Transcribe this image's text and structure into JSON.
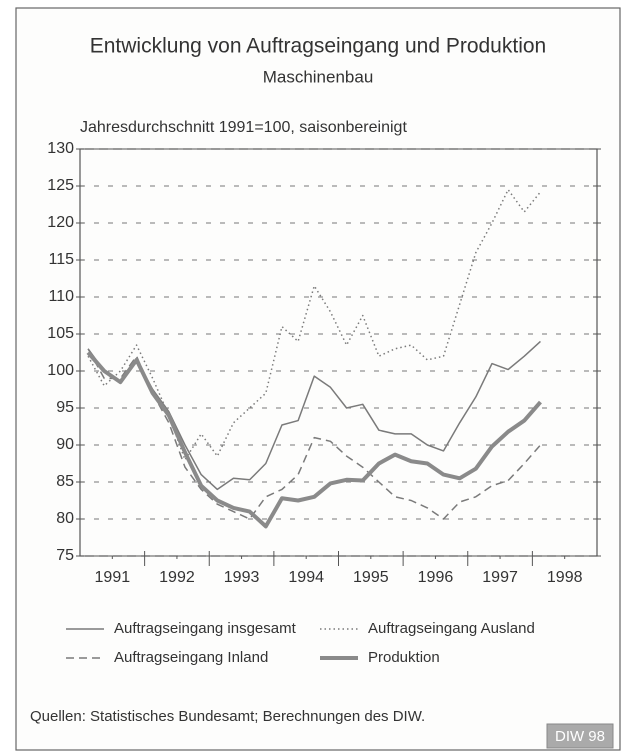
{
  "chart_data": {
    "type": "line",
    "title": "Entwicklung von Auftragseingang und Produktion",
    "subtitle": "Maschinenbau",
    "ylabel": "Jahresdurchschnitt 1991=100, saisonbereinigt",
    "source": "Quellen: Statistisches Bundesamt; Berechnungen des DIW.",
    "badge": "DIW 98",
    "x": [
      1991.125,
      1991.375,
      1991.625,
      1991.875,
      1992.125,
      1992.375,
      1992.625,
      1992.875,
      1993.125,
      1993.375,
      1993.625,
      1993.875,
      1994.125,
      1994.375,
      1994.625,
      1994.875,
      1995.125,
      1995.375,
      1995.625,
      1995.875,
      1996.125,
      1996.375,
      1996.625,
      1996.875,
      1997.125,
      1997.375,
      1997.625,
      1997.875,
      1998.125
    ],
    "xlim": [
      1991,
      1999
    ],
    "xticks": [
      {
        "value": 1991.5,
        "label": "1991"
      },
      {
        "value": 1992.5,
        "label": "1992"
      },
      {
        "value": 1993.5,
        "label": "1993"
      },
      {
        "value": 1994.5,
        "label": "1994"
      },
      {
        "value": 1995.5,
        "label": "1995"
      },
      {
        "value": 1996.5,
        "label": "1996"
      },
      {
        "value": 1997.5,
        "label": "1997"
      },
      {
        "value": 1998.5,
        "label": "1998"
      }
    ],
    "ylim": [
      75,
      130
    ],
    "yticks": [
      75,
      80,
      85,
      90,
      95,
      100,
      105,
      110,
      115,
      120,
      125,
      130
    ],
    "grid": true,
    "series": [
      {
        "name": "Auftragseingang insgesamt",
        "color": "#7a7a7a",
        "style": "solid",
        "width": 1.5,
        "values": [
          103,
          100,
          98.5,
          101.5,
          97.5,
          94.5,
          90,
          86,
          84,
          85.5,
          85.3,
          87.5,
          92.7,
          93.3,
          99.3,
          97.8,
          95,
          95.5,
          92,
          91.5,
          91.5,
          90,
          89.2,
          93,
          96.5,
          101,
          100.2,
          102,
          104
        ]
      },
      {
        "name": "Auftragseingang Ausland",
        "color": "#7a7a7a",
        "style": "dotted",
        "width": 1.5,
        "values": [
          102,
          98,
          100,
          103.5,
          99,
          94,
          88,
          91.5,
          88.5,
          93,
          95,
          97,
          106,
          104,
          111.5,
          108,
          103.5,
          107.5,
          102,
          103,
          103.5,
          101.5,
          102,
          109,
          116,
          120,
          124.5,
          121.5,
          124.2
        ]
      },
      {
        "name": "Auftragseingang Inland",
        "color": "#7a7a7a",
        "style": "dashed",
        "width": 1.5,
        "values": [
          103,
          99,
          99,
          102,
          97,
          93,
          87,
          84,
          82,
          81,
          80,
          83,
          84,
          86,
          91,
          90.5,
          88.5,
          87,
          85,
          83,
          82.5,
          81.5,
          80,
          82.3,
          83,
          84.5,
          85.2,
          87.5,
          90
        ]
      },
      {
        "name": "Produktion",
        "color": "#8a8a8a",
        "style": "solid",
        "width": 4,
        "values": [
          102.5,
          100,
          98.5,
          101.5,
          97,
          94,
          89,
          84.5,
          82.5,
          81.5,
          81,
          79,
          82.8,
          82.5,
          83,
          84.8,
          85.3,
          85.2,
          87.5,
          88.7,
          87.8,
          87.5,
          86,
          85.5,
          86.8,
          89.8,
          91.8,
          93.3,
          95.8
        ]
      }
    ]
  }
}
